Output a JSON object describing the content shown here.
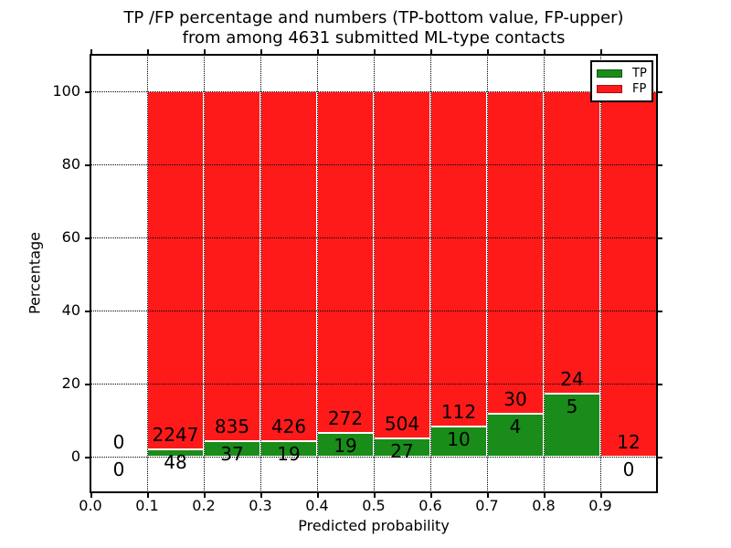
{
  "title": {
    "line1": "TP /FP percentage and numbers (TP-bottom value, FP-upper)",
    "line2": "from among 4631 submitted ML-type contacts"
  },
  "chart_data": {
    "type": "bar",
    "stacked": true,
    "title": "TP /FP percentage and numbers (TP-bottom value, FP-upper) from among 4631 submitted ML-type contacts",
    "xlabel": "Predicted probability",
    "ylabel": "Percentage",
    "xlim": [
      0.0,
      1.0
    ],
    "ylim": [
      -10,
      110
    ],
    "xticks": [
      "0.0",
      "0.1",
      "0.2",
      "0.3",
      "0.4",
      "0.5",
      "0.6",
      "0.7",
      "0.8",
      "0.9"
    ],
    "yticks": [
      0,
      20,
      40,
      60,
      80,
      100
    ],
    "grid": true,
    "grid_style": "dotted, drawn above bars",
    "bin_width": 0.1,
    "total_contacts": 4631,
    "categories": [
      "0.0-0.1",
      "0.1-0.2",
      "0.2-0.3",
      "0.3-0.4",
      "0.4-0.5",
      "0.5-0.6",
      "0.6-0.7",
      "0.7-0.8",
      "0.8-0.9",
      "0.9-1.0"
    ],
    "series": [
      {
        "name": "TP",
        "color": "#198c19",
        "counts": [
          0,
          48,
          37,
          19,
          19,
          27,
          10,
          4,
          5,
          0
        ],
        "percent": [
          0,
          2.09,
          4.24,
          4.27,
          6.53,
          5.08,
          8.2,
          11.76,
          17.24,
          0
        ]
      },
      {
        "name": "FP",
        "color": "#ff1a1a",
        "counts": [
          0,
          2247,
          835,
          426,
          272,
          504,
          112,
          30,
          24,
          12
        ],
        "percent": [
          0,
          97.91,
          95.76,
          95.73,
          93.47,
          94.92,
          91.8,
          88.24,
          82.76,
          100
        ]
      }
    ],
    "legend": {
      "position": "upper right",
      "entries": [
        {
          "label": "TP",
          "color": "#198c19"
        },
        {
          "label": "FP",
          "color": "#ff1a1a"
        }
      ]
    }
  }
}
